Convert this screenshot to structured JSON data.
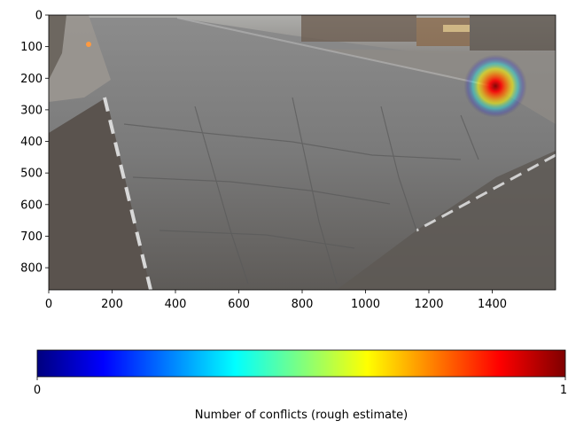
{
  "chart_data": {
    "type": "heatmap",
    "title": "",
    "background": "photo of an empty street intersection (traffic camera view)",
    "x_ticks": [
      "0",
      "200",
      "400",
      "600",
      "800",
      "1000",
      "1200",
      "1400"
    ],
    "y_ticks": [
      "0",
      "100",
      "200",
      "300",
      "400",
      "500",
      "600",
      "700",
      "800"
    ],
    "xlim": [
      0,
      1600
    ],
    "ylim": [
      870,
      0
    ],
    "hotspots": [
      {
        "x": 1410,
        "y": 225,
        "radius": 100,
        "intensity": 1.0
      }
    ],
    "colorbar": {
      "colormap": "jet",
      "min_label": "0",
      "max_label": "1",
      "label": "Number of conflicts (rough estimate)",
      "colors": [
        "#00007f",
        "#0000ff",
        "#007fff",
        "#00ffff",
        "#7fff7f",
        "#ffff00",
        "#ff7f00",
        "#ff0000",
        "#7f0000"
      ]
    }
  }
}
